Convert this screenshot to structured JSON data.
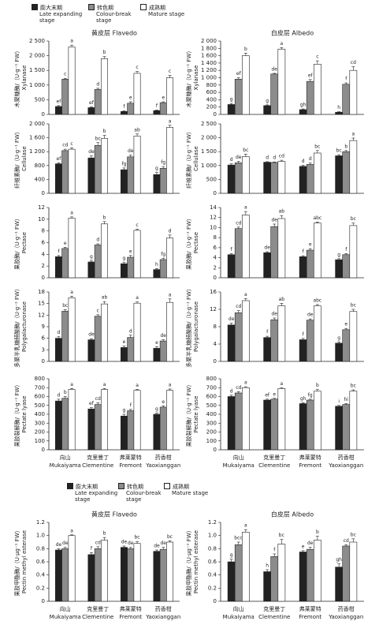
{
  "chart_data": [
    {
      "type": "bar",
      "title": "黄皮层 Flavedo",
      "ylabel": "木聚糖酶/（U·g⁻¹ FW）",
      "ylabel_en": "Xylanase",
      "ylim": [
        0,
        2500
      ],
      "yticks": [
        0,
        500,
        {
          "value": 1000,
          "label": "1 000"
        },
        {
          "value": 1500,
          "label": "1 500"
        },
        {
          "value": 2000,
          "label": "2 000"
        },
        {
          "value": 2500,
          "label": "2 500"
        }
      ],
      "series": [
        {
          "name": "膨大末期",
          "name_en": "Late expanding stage",
          "color": "#222222",
          "values": [
            270,
            230,
            100,
            130
          ],
          "errors": [
            30,
            30,
            20,
            20
          ],
          "letters": [
            "ef",
            "ef",
            "f",
            "f"
          ]
        },
        {
          "name": "转色期",
          "name_en": "Colour-break stage",
          "color": "#8c8c8c",
          "values": [
            1200,
            850,
            380,
            400
          ],
          "errors": [
            30,
            40,
            50,
            30
          ],
          "letters": [
            "c",
            "d",
            "e",
            "e"
          ]
        },
        {
          "name": "成熟期",
          "name_en": "Mature stage",
          "color": "#ffffff",
          "values": [
            2300,
            1900,
            1400,
            1250
          ],
          "errors": [
            60,
            70,
            60,
            80
          ],
          "letters": [
            "a",
            "b",
            "c",
            "c"
          ]
        }
      ]
    },
    {
      "type": "bar",
      "title": "白皮层 Albedo",
      "ylabel": "木聚糖酶/（U·g⁻¹ FW）",
      "ylabel_en": "Xylanase",
      "ylim": [
        0,
        2000
      ],
      "yticks": [
        0,
        200,
        400,
        600,
        800,
        {
          "value": 1000,
          "label": "1 000"
        },
        {
          "value": 1200,
          "label": "1 200"
        },
        {
          "value": 1400,
          "label": "1 400"
        },
        {
          "value": 1600,
          "label": "1 600"
        },
        {
          "value": 1800,
          "label": "1 800"
        },
        {
          "value": 2000,
          "label": "2 000"
        }
      ],
      "series": [
        {
          "color": "#222222",
          "values": [
            270,
            240,
            130,
            60
          ],
          "errors": [
            30,
            20,
            20,
            15
          ],
          "letters": [
            "g",
            "g",
            "gh",
            "h"
          ]
        },
        {
          "color": "#8c8c8c",
          "values": [
            960,
            1100,
            900,
            820
          ],
          "errors": [
            40,
            20,
            50,
            40
          ],
          "letters": [
            "ef",
            "de",
            "ef",
            "f"
          ]
        },
        {
          "color": "#ffffff",
          "values": [
            1600,
            1780,
            1370,
            1200
          ],
          "errors": [
            70,
            40,
            90,
            100
          ],
          "letters": [
            "b",
            "a",
            "c",
            "cd"
          ]
        }
      ]
    },
    {
      "type": "bar",
      "ylabel": "纤维素酶/（U·g⁻¹ FW）",
      "ylabel_en": "Cellulase",
      "ylim": [
        0,
        2000
      ],
      "yticks": [
        0,
        400,
        800,
        {
          "value": 1200,
          "label": "1 200"
        },
        {
          "value": 1600,
          "label": "1 600"
        },
        {
          "value": 2000,
          "label": "2 000"
        }
      ],
      "series": [
        {
          "color": "#222222",
          "values": [
            850,
            1020,
            680,
            540
          ],
          "errors": [
            30,
            60,
            50,
            60
          ],
          "letters": [
            "ef",
            "de",
            "fg",
            "g"
          ]
        },
        {
          "color": "#8c8c8c",
          "values": [
            1230,
            1380,
            1050,
            720
          ],
          "errors": [
            40,
            80,
            50,
            50
          ],
          "letters": [
            "cd",
            "bc",
            "de",
            "fg"
          ]
        },
        {
          "color": "#ffffff",
          "values": [
            1270,
            1580,
            1650,
            1900
          ],
          "errors": [
            40,
            90,
            60,
            60
          ],
          "letters": [
            "c",
            "b",
            "ab",
            "a"
          ]
        }
      ]
    },
    {
      "type": "bar",
      "ylabel": "纤维素酶/（U·g⁻¹ FW）",
      "ylabel_en": "Cellulase",
      "ylim": [
        0,
        2500
      ],
      "yticks": [
        0,
        500,
        {
          "value": 1000,
          "label": "1 000"
        },
        {
          "value": 1500,
          "label": "1 500"
        },
        {
          "value": 2000,
          "label": "2 000"
        },
        {
          "value": 2500,
          "label": "2 500"
        }
      ],
      "series": [
        {
          "color": "#222222",
          "values": [
            1020,
            1120,
            970,
            1350
          ],
          "errors": [
            40,
            20,
            40,
            40
          ],
          "letters": [
            "d",
            "d",
            "d",
            "bc"
          ]
        },
        {
          "color": "#8c8c8c",
          "values": [
            1100,
            1110,
            1040,
            1500
          ],
          "errors": [
            50,
            20,
            50,
            40
          ],
          "letters": [
            "de",
            "d",
            "d",
            "b"
          ]
        },
        {
          "color": "#ffffff",
          "values": [
            1320,
            1150,
            1450,
            1900
          ],
          "errors": [
            90,
            40,
            90,
            90
          ],
          "letters": [
            "bc",
            "cd",
            "bc",
            "a"
          ]
        }
      ]
    },
    {
      "type": "bar",
      "ylabel": "果胶酶/（U·g⁻¹ FW）",
      "ylabel_en": "Pectase",
      "ylim": [
        0,
        12
      ],
      "yticks": [
        0,
        2,
        4,
        6,
        8,
        10,
        12
      ],
      "series": [
        {
          "color": "#222222",
          "values": [
            3.6,
            2.7,
            2.4,
            1.4
          ],
          "errors": [
            0.2,
            0.2,
            0.2,
            0.15
          ],
          "letters": [
            "f",
            "g",
            "g",
            "h"
          ]
        },
        {
          "color": "#8c8c8c",
          "values": [
            5.0,
            5.6,
            3.5,
            3.1
          ],
          "errors": [
            0.2,
            0.2,
            0.3,
            0.2
          ],
          "letters": [
            "e",
            "d",
            "e",
            "fg"
          ]
        },
        {
          "color": "#ffffff",
          "values": [
            10.2,
            9.2,
            8.1,
            6.8
          ],
          "errors": [
            0.2,
            0.4,
            0.2,
            0.5
          ],
          "letters": [
            "a",
            "b",
            "c",
            "d"
          ]
        }
      ]
    },
    {
      "type": "bar",
      "ylabel": "果胶酶/（U·g⁻¹ FW）",
      "ylabel_en": "Pectase",
      "ylim": [
        0,
        14
      ],
      "yticks": [
        0,
        2,
        4,
        6,
        8,
        10,
        12,
        14
      ],
      "series": [
        {
          "color": "#222222",
          "values": [
            4.6,
            5.0,
            4.2,
            3.6
          ],
          "errors": [
            0.2,
            0.2,
            0.2,
            0.2
          ],
          "letters": [
            "f",
            "de",
            "f",
            "g"
          ]
        },
        {
          "color": "#8c8c8c",
          "values": [
            9.8,
            10.2,
            5.5,
            4.6
          ],
          "errors": [
            0.3,
            0.5,
            0.3,
            0.2
          ],
          "letters": [
            "cd",
            "de",
            "e",
            "f"
          ]
        },
        {
          "color": "#ffffff",
          "values": [
            12.5,
            11.8,
            10.9,
            10.4
          ],
          "errors": [
            0.7,
            0.6,
            0.2,
            0.5
          ],
          "letters": [
            "a",
            "ab",
            "abc",
            "bc"
          ]
        }
      ]
    },
    {
      "type": "bar",
      "ylabel": "多聚半乳糖醛酸酶/（U·g⁻¹ FW）",
      "ylabel_en": "Polygalacturonase",
      "ylim": [
        0,
        18
      ],
      "yticks": [
        0,
        3,
        6,
        9,
        12,
        15,
        18
      ],
      "series": [
        {
          "color": "#222222",
          "values": [
            6.0,
            5.6,
            3.6,
            3.4
          ],
          "errors": [
            0.4,
            0.3,
            0.4,
            0.4
          ],
          "letters": [
            "d",
            "de",
            "e",
            "e"
          ]
        },
        {
          "color": "#8c8c8c",
          "values": [
            13.0,
            11.7,
            6.2,
            5.3
          ],
          "errors": [
            0.4,
            0.4,
            0.6,
            0.3
          ],
          "letters": [
            "bc",
            "c",
            "d",
            "de"
          ]
        },
        {
          "color": "#ffffff",
          "values": [
            16.5,
            14.9,
            15.1,
            15.3
          ],
          "errors": [
            0.4,
            0.6,
            0.3,
            0.9
          ],
          "letters": [
            "a",
            "ab",
            "a",
            "a"
          ]
        }
      ]
    },
    {
      "type": "bar",
      "ylabel": "多聚半乳糖醛酸酶/（U·g⁻¹ FW）",
      "ylabel_en": "Polygalacturonase",
      "ylim": [
        0,
        16
      ],
      "yticks": [
        0,
        4,
        8,
        12,
        16
      ],
      "series": [
        {
          "color": "#222222",
          "values": [
            8.4,
            5.5,
            5.0,
            4.2
          ],
          "errors": [
            0.4,
            0.3,
            0.3,
            0.3
          ],
          "letters": [
            "de",
            "f",
            "f",
            "g"
          ]
        },
        {
          "color": "#8c8c8c",
          "values": [
            11.2,
            9.6,
            9.5,
            7.3
          ],
          "errors": [
            0.5,
            0.4,
            0.3,
            0.3
          ],
          "letters": [
            "cd",
            "de",
            "de",
            "e"
          ]
        },
        {
          "color": "#ffffff",
          "values": [
            14.0,
            12.8,
            12.8,
            11.5
          ],
          "errors": [
            0.5,
            0.6,
            0.3,
            0.5
          ],
          "letters": [
            "a",
            "ab",
            "abc",
            "bc"
          ]
        }
      ]
    },
    {
      "type": "bar",
      "ylabel": "果胶裂解酶/（U·g⁻¹ FW）",
      "ylabel_en": "Pectate lyase",
      "ylim": [
        0,
        800
      ],
      "yticks": [
        0,
        100,
        200,
        300,
        400,
        500,
        600,
        700,
        800
      ],
      "categories": [
        "向山",
        "克里曼丁",
        "弗莱蒙特",
        "药香柑"
      ],
      "categories_en": [
        "Mukaiyama",
        "Clementine",
        "Fremont",
        "Yaoxianggan"
      ],
      "series": [
        {
          "color": "#222222",
          "values": [
            550,
            460,
            380,
            400
          ],
          "errors": [
            20,
            15,
            20,
            15
          ],
          "letters": [
            "d",
            "ef",
            "g",
            "g"
          ]
        },
        {
          "color": "#8c8c8c",
          "values": [
            580,
            510,
            440,
            480
          ],
          "errors": [
            20,
            20,
            15,
            15
          ],
          "letters": [
            "b",
            "cd",
            "f",
            "e"
          ]
        },
        {
          "color": "#ffffff",
          "values": [
            680,
            680,
            670,
            670
          ],
          "errors": [
            10,
            10,
            10,
            15
          ],
          "letters": [
            "a",
            "a",
            "a",
            "a"
          ]
        }
      ]
    },
    {
      "type": "bar",
      "ylabel": "果胶裂解酶/（U·g⁻¹ FW）",
      "ylabel_en": "Pectate lyase",
      "ylim": [
        0,
        800
      ],
      "yticks": [
        0,
        100,
        200,
        300,
        400,
        500,
        600,
        700,
        800
      ],
      "categories": [
        "向山",
        "克里曼丁",
        "弗莱蒙特",
        "药香柑"
      ],
      "categories_en": [
        "Mukaiyama",
        "Clementine",
        "Fremont",
        "Yaoxianggan"
      ],
      "series": [
        {
          "color": "#222222",
          "values": [
            600,
            560,
            520,
            490
          ],
          "errors": [
            15,
            10,
            10,
            10
          ],
          "letters": [
            "d",
            "ef",
            "gh",
            "i"
          ]
        },
        {
          "color": "#8c8c8c",
          "values": [
            640,
            570,
            560,
            510
          ],
          "errors": [
            15,
            10,
            10,
            10
          ],
          "letters": [
            "cd",
            "e",
            "fg",
            "hi"
          ]
        },
        {
          "color": "#ffffff",
          "values": [
            700,
            690,
            660,
            660
          ],
          "errors": [
            10,
            10,
            20,
            15
          ],
          "letters": [
            "a",
            "a",
            "b",
            "bc"
          ]
        }
      ]
    },
    {
      "type": "bar",
      "title": "黄皮层 Flavedo",
      "ylabel": "果胶甲酯酶/（U·μg⁻¹ FW）",
      "ylabel_en": "Pectin methyl esterase",
      "ylim": [
        0,
        1.2
      ],
      "yticks": [
        0,
        0.2,
        0.4,
        0.6,
        0.8,
        {
          "value": 1,
          "label": "1.0"
        },
        1.2
      ],
      "categories": [
        "向山",
        "克里曼丁",
        "弗莱蒙特",
        "药香柑"
      ],
      "categories_en": [
        "Mukaiyama",
        "Clementine",
        "Fremont",
        "Yaoxianggan"
      ],
      "series": [
        {
          "name": "膨大末期",
          "name_en": "Late expanding stage",
          "color": "#222222",
          "values": [
            0.78,
            0.71,
            0.82,
            0.76
          ],
          "errors": [
            0.02,
            0.03,
            0.02,
            0.02
          ],
          "letters": [
            "de",
            "f",
            "de",
            "de"
          ]
        },
        {
          "name": "转色期",
          "name_en": "Colour-break stage",
          "color": "#8c8c8c",
          "values": [
            0.8,
            0.8,
            0.8,
            0.79
          ],
          "errors": [
            0.02,
            0.03,
            0.02,
            0.03
          ],
          "letters": [
            "de",
            "cd",
            "de",
            "de"
          ]
        },
        {
          "name": "成熟期",
          "name_en": "Mature stage",
          "color": "#ffffff",
          "values": [
            1.0,
            0.93,
            0.88,
            0.9
          ],
          "errors": [
            0.01,
            0.04,
            0.03,
            0.02
          ],
          "letters": [
            "a",
            "b",
            "bc",
            "bc"
          ]
        }
      ]
    },
    {
      "type": "bar",
      "title": "白皮层 Albedo",
      "ylabel": "果胶甲酯酶/（U·μg⁻¹ FW）",
      "ylabel_en": "Pectin methyl esterase",
      "ylim": [
        0,
        1.2
      ],
      "yticks": [
        0,
        0.2,
        0.4,
        0.6,
        0.8,
        {
          "value": 1,
          "label": "1.0"
        },
        1.2
      ],
      "categories": [
        "向山",
        "克里曼丁",
        "弗莱蒙特",
        "药香柑"
      ],
      "categories_en": [
        "Mukaiyama",
        "Clementine",
        "Fremont",
        "Yaoxianggan"
      ],
      "series": [
        {
          "color": "#222222",
          "values": [
            0.6,
            0.45,
            0.75,
            0.52
          ],
          "errors": [
            0.04,
            0.03,
            0.02,
            0.05
          ],
          "letters": [
            "g",
            "h",
            "e",
            "gh"
          ]
        },
        {
          "color": "#8c8c8c",
          "values": [
            0.86,
            0.68,
            0.79,
            0.84
          ],
          "errors": [
            0.04,
            0.04,
            0.03,
            0.02
          ],
          "letters": [
            "bcd",
            "f",
            "de",
            "cd"
          ]
        },
        {
          "color": "#ffffff",
          "values": [
            1.05,
            0.87,
            0.93,
            0.9
          ],
          "errors": [
            0.04,
            0.07,
            0.06,
            0.05
          ],
          "letters": [
            "a",
            "bc",
            "b",
            "bc"
          ]
        }
      ]
    }
  ]
}
